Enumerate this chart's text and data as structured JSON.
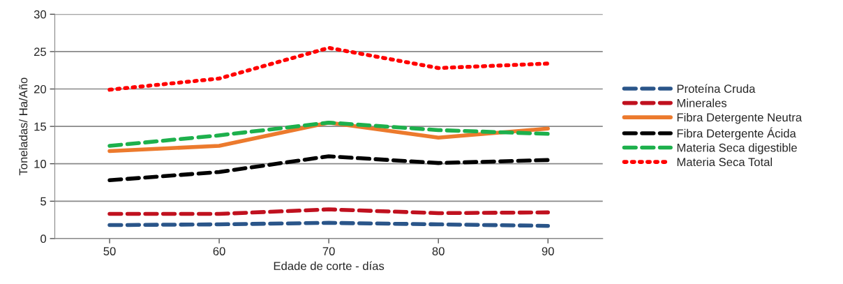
{
  "chart_data": {
    "type": "line",
    "xlabel": "Edade de corte - días",
    "ylabel": "Toneladas/ Ha/Año",
    "categories": [
      "50",
      "60",
      "70",
      "80",
      "90"
    ],
    "series": [
      {
        "name": "Proteína Cruda",
        "color": "#2a5589",
        "line_style": "dashed",
        "values": [
          1.8,
          1.9,
          2.1,
          1.9,
          1.7
        ]
      },
      {
        "name": "Minerales",
        "color": "#c0111f",
        "line_style": "dashed",
        "values": [
          3.3,
          3.3,
          3.9,
          3.4,
          3.5
        ]
      },
      {
        "name": "Fibra Detergente Neutra",
        "color": "#ec7a2d",
        "line_style": "solid",
        "values": [
          11.7,
          12.4,
          15.5,
          13.5,
          14.7
        ]
      },
      {
        "name": "Fibra Detergente Ácida",
        "color": "#000000",
        "line_style": "dashed",
        "values": [
          7.8,
          8.9,
          11.0,
          10.1,
          10.5
        ]
      },
      {
        "name": "Materia Seca digestible",
        "color": "#1db04c",
        "line_style": "dashed",
        "values": [
          12.4,
          13.8,
          15.5,
          14.5,
          14.0
        ]
      },
      {
        "name": "Materia Seca Total",
        "color": "#ff0000",
        "line_style": "dotted",
        "values": [
          19.9,
          21.4,
          25.5,
          22.8,
          23.4
        ]
      }
    ],
    "ylim": [
      0,
      30
    ],
    "yticks": [
      0,
      5,
      10,
      15,
      20,
      25,
      30
    ],
    "grid": "y",
    "legend": "right",
    "marker": "none"
  }
}
